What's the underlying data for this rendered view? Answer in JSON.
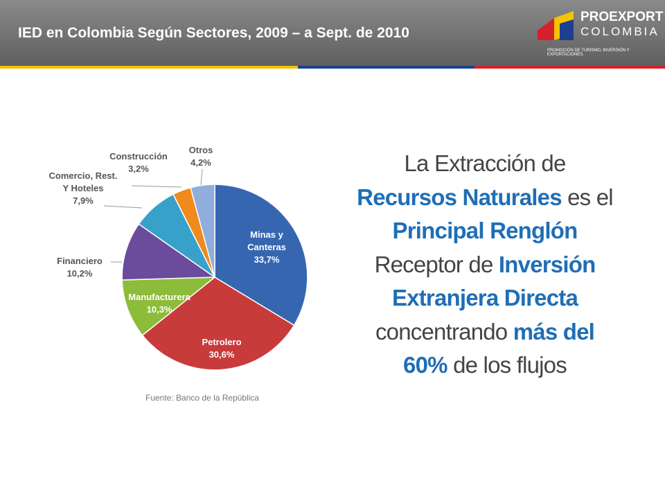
{
  "header": {
    "title": "IED en Colombia Según Sectores, 2009 – a Sept. de 2010",
    "logo_name": "PROEXPORT",
    "logo_country": "COLOMBIA",
    "logo_tagline": "PROMOCIÓN DE TURISMO, INVERSIÓN Y EXPORTACIONES."
  },
  "chart_data": {
    "type": "pie",
    "categories": [
      "Minas y Canteras",
      "Petrolero",
      "Manufacturera",
      "Financiero",
      "Comercio, Rest. Y Hoteles",
      "Construcción",
      "Otros"
    ],
    "values": [
      33.7,
      30.6,
      10.3,
      10.2,
      7.9,
      3.2,
      4.2
    ],
    "value_labels": [
      "33,7%",
      "30,6%",
      "10,3%",
      "10,2%",
      "7,9%",
      "3,2%",
      "4,2%"
    ],
    "colors": [
      "#3766b1",
      "#c83b3b",
      "#8dbb3a",
      "#6b4b9c",
      "#38a1c9",
      "#f08a1c",
      "#8faddd"
    ],
    "source": "Fuente: Banco de la República"
  },
  "message": {
    "lines": [
      [
        {
          "text": "La Extracción de",
          "bold": false
        }
      ],
      [
        {
          "text": "Recursos Naturales",
          "bold": true
        },
        {
          "text": " es el",
          "bold": false
        }
      ],
      [
        {
          "text": "Principal Renglón",
          "bold": true
        }
      ],
      [
        {
          "text": "Receptor de ",
          "bold": false
        },
        {
          "text": "Inversión",
          "bold": true
        }
      ],
      [
        {
          "text": "Extranjera Directa",
          "bold": true
        }
      ],
      [
        {
          "text": "concentrando ",
          "bold": false
        },
        {
          "text": "más del",
          "bold": true
        }
      ],
      [
        {
          "text": "60%",
          "bold": true
        },
        {
          "text": " de los flujos",
          "bold": false
        }
      ]
    ]
  }
}
